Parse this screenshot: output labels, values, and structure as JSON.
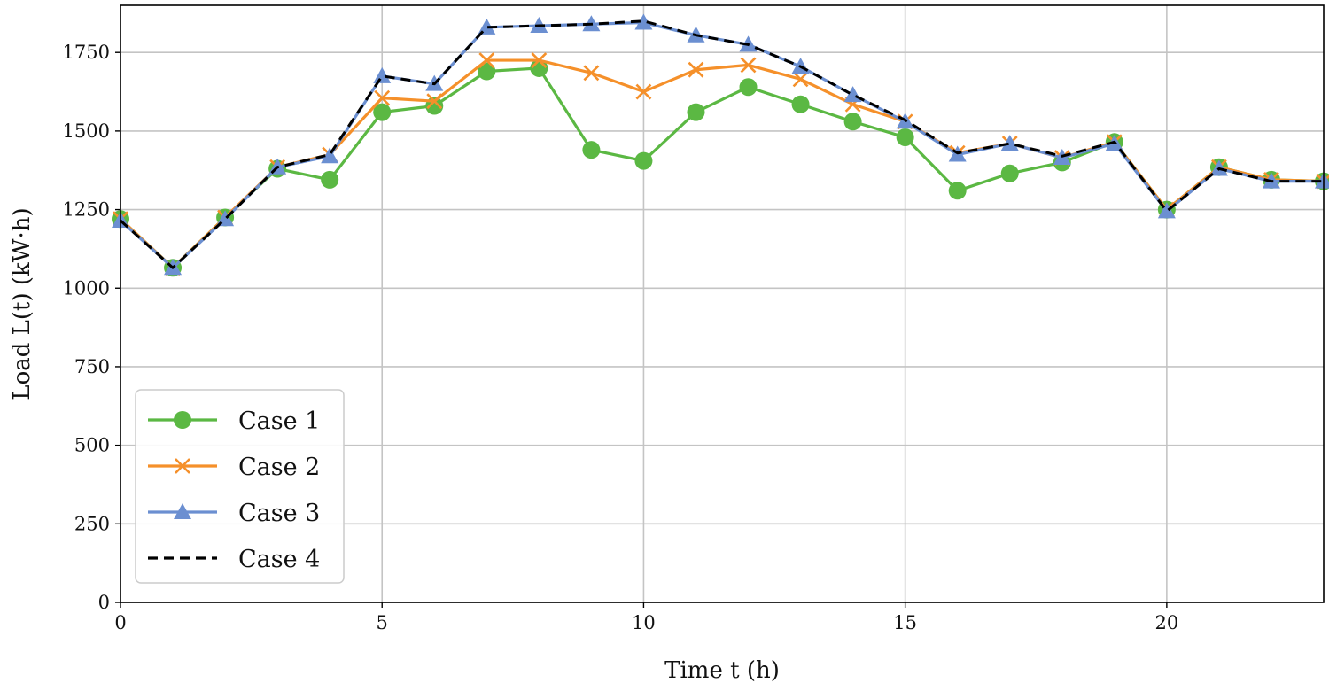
{
  "chart_data": {
    "type": "line",
    "xlabel": "Time t (h)",
    "ylabel": "Load L(t) (kW·h)",
    "xlim": [
      0,
      23
    ],
    "ylim": [
      0,
      1900
    ],
    "xticks": [
      0,
      5,
      10,
      15,
      20
    ],
    "yticks": [
      0,
      250,
      500,
      750,
      1000,
      1250,
      1500,
      1750
    ],
    "grid": true,
    "legend_position": "lower-left",
    "x": [
      0,
      1,
      2,
      3,
      4,
      5,
      6,
      7,
      8,
      9,
      10,
      11,
      12,
      13,
      14,
      15,
      16,
      17,
      18,
      19,
      20,
      21,
      22,
      23
    ],
    "series": [
      {
        "name": "Case 1",
        "color": "#5bb843",
        "marker": "circle",
        "linestyle": "solid",
        "values": [
          1220,
          1065,
          1225,
          1380,
          1345,
          1560,
          1580,
          1690,
          1700,
          1440,
          1405,
          1560,
          1640,
          1585,
          1530,
          1480,
          1310,
          1365,
          1400,
          1465,
          1250,
          1385,
          1345,
          1340
        ]
      },
      {
        "name": "Case 2",
        "color": "#f5902a",
        "marker": "x",
        "linestyle": "solid",
        "values": [
          1220,
          1065,
          1225,
          1385,
          1425,
          1605,
          1595,
          1725,
          1725,
          1685,
          1625,
          1695,
          1710,
          1665,
          1585,
          1530,
          1430,
          1460,
          1415,
          1465,
          1250,
          1385,
          1345,
          1340
        ]
      },
      {
        "name": "Case 3",
        "color": "#6b8fd1",
        "marker": "triangle",
        "linestyle": "solid",
        "values": [
          1215,
          1065,
          1220,
          1385,
          1420,
          1675,
          1650,
          1830,
          1835,
          1840,
          1845,
          1805,
          1775,
          1705,
          1615,
          1530,
          1425,
          1460,
          1415,
          1460,
          1245,
          1380,
          1340,
          1340
        ]
      },
      {
        "name": "Case 4",
        "color": "#000000",
        "marker": "none",
        "linestyle": "dashed",
        "values": [
          1215,
          1065,
          1220,
          1385,
          1425,
          1675,
          1650,
          1830,
          1835,
          1840,
          1850,
          1805,
          1775,
          1705,
          1615,
          1535,
          1430,
          1460,
          1420,
          1465,
          1245,
          1380,
          1340,
          1340
        ]
      }
    ]
  }
}
